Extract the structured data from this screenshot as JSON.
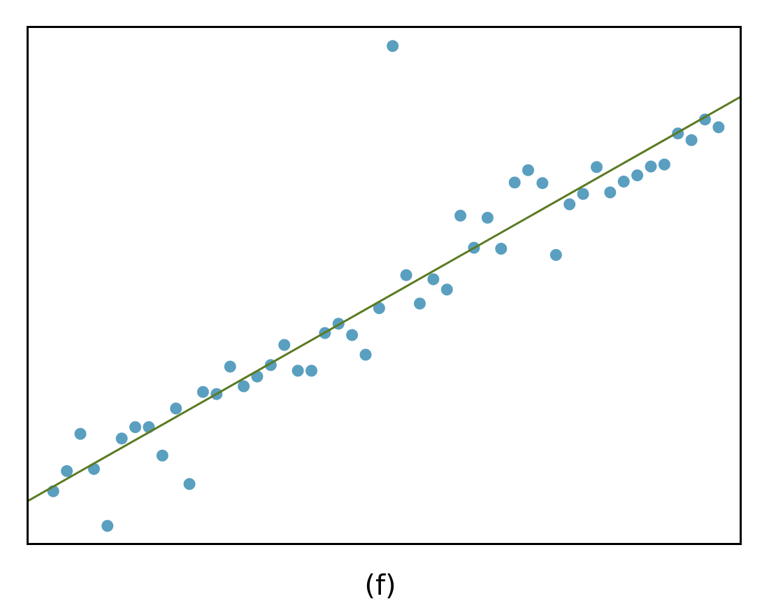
{
  "chart_data": {
    "type": "scatter",
    "title": "",
    "xlabel": "",
    "ylabel": "",
    "caption": "(f)",
    "xlim": [
      0,
      100
    ],
    "ylim": [
      0,
      100
    ],
    "grid": false,
    "legend": "none",
    "axes_ticks": false,
    "colors": {
      "points": "#5a9fc0",
      "fit_line": "#5b7a22",
      "frame": "#000000"
    },
    "series": [
      {
        "x": [
          3.6,
          5.5,
          7.4,
          9.3,
          11.2,
          13.2,
          15.1,
          17.0,
          18.9,
          20.8,
          22.7,
          24.6,
          26.5,
          28.4,
          30.3,
          32.2,
          34.1,
          36.0,
          37.9,
          39.8,
          41.7,
          43.6,
          45.5,
          47.4,
          49.3,
          51.2,
          53.1,
          55.0,
          56.9,
          58.8,
          60.7,
          62.6,
          64.5,
          66.4,
          68.3,
          70.2,
          72.2,
          74.1,
          76.0,
          77.9,
          79.8,
          81.7,
          83.6,
          85.5,
          87.4,
          89.3,
          91.2,
          93.1,
          95.0,
          96.9
        ],
        "y": [
          10.2,
          14.1,
          21.3,
          14.5,
          3.5,
          20.4,
          22.6,
          22.6,
          17.1,
          26.2,
          11.6,
          29.4,
          29.0,
          34.3,
          30.5,
          32.4,
          34.6,
          38.5,
          33.5,
          33.5,
          40.8,
          42.6,
          40.4,
          36.6,
          45.6,
          96.3,
          52.0,
          46.5,
          51.2,
          49.2,
          63.5,
          57.3,
          63.1,
          57.1,
          69.9,
          72.3,
          69.8,
          55.9,
          65.7,
          67.7,
          72.9,
          68.0,
          70.1,
          71.3,
          73.0,
          73.4,
          79.4,
          78.1,
          82.1,
          80.6
        ]
      }
    ],
    "fit_line": {
      "x": [
        0,
        100
      ],
      "y": [
        8.3,
        86.5
      ]
    }
  }
}
